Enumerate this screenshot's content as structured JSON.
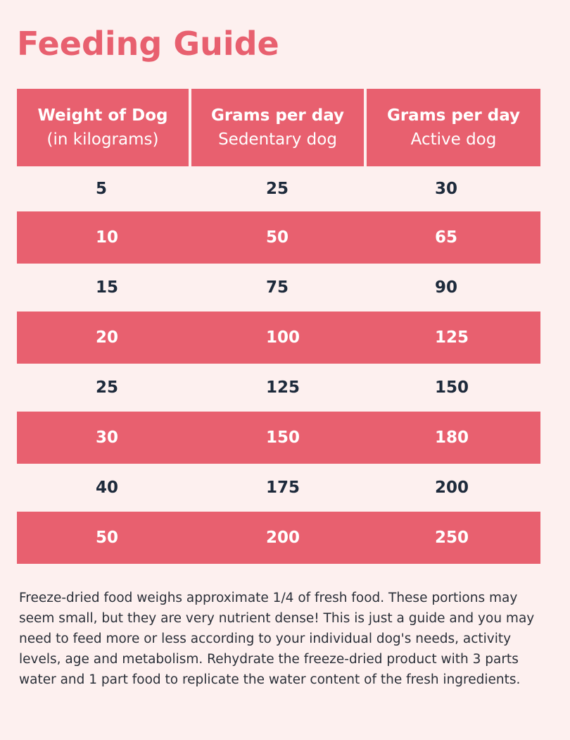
{
  "title": "Feeding Guide",
  "table": {
    "headers": [
      {
        "main": "Weight of Dog",
        "sub": "(in kilograms)"
      },
      {
        "main": "Grams per day",
        "sub": "Sedentary dog"
      },
      {
        "main": "Grams per day",
        "sub": "Active dog"
      }
    ],
    "rows": [
      [
        "5",
        "25",
        "30"
      ],
      [
        "10",
        "50",
        "65"
      ],
      [
        "15",
        "75",
        "90"
      ],
      [
        "20",
        "100",
        "125"
      ],
      [
        "25",
        "125",
        "150"
      ],
      [
        "30",
        "150",
        "180"
      ],
      [
        "40",
        "175",
        "200"
      ],
      [
        "50",
        "200",
        "250"
      ]
    ]
  },
  "note": "Freeze-dried food weighs approximate 1/4 of fresh food. These portions may seem small, but they are very nutrient dense! This is just a guide and you may need to feed more or less according to your individual dog's needs, activity levels, age and metabolism. Rehydrate the freeze-dried product with 3 parts water and 1 part food to replicate the water content of the fresh ingredients.",
  "colors": {
    "accent": "#e8606f",
    "background": "#fdf0ef",
    "text": "#1d2a3b"
  }
}
